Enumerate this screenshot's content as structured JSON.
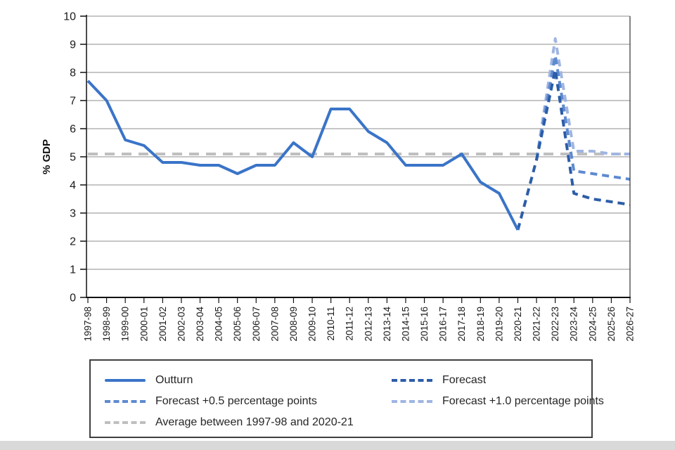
{
  "colors": {
    "outturn": "#3a74c8",
    "forecast": "#2c5da8",
    "forecast_plus_05": "#5e8ad0",
    "forecast_plus_10": "#9fb5e2",
    "average": "#bfbfbf",
    "grid": "#8c8c8c",
    "axis": "#111111",
    "bottom_band": "#d9d9d9"
  },
  "chart_data": {
    "type": "line",
    "title": "",
    "xlabel": "",
    "ylabel": "% GDP",
    "ylim": [
      0,
      10
    ],
    "y_ticks": [
      0,
      1,
      2,
      3,
      4,
      5,
      6,
      7,
      8,
      9,
      10
    ],
    "grid": true,
    "legend_position": "bottom-box",
    "categories": [
      "1997-98",
      "1998-99",
      "1999-00",
      "2000-01",
      "2001-02",
      "2002-03",
      "2003-04",
      "2004-05",
      "2005-06",
      "2006-07",
      "2007-08",
      "2008-09",
      "2009-10",
      "2010-11",
      "2011-12",
      "2012-13",
      "2013-14",
      "2014-15",
      "2015-16",
      "2016-17",
      "2017-18",
      "2018-19",
      "2019-20",
      "2020-21",
      "2021-22",
      "2022-23",
      "2023-24",
      "2024-25",
      "2025-26",
      "2026-27"
    ],
    "series": [
      {
        "name": "Outturn",
        "style": "solid",
        "color": "#3a74c8",
        "values": [
          7.7,
          7.0,
          5.6,
          5.4,
          4.8,
          4.8,
          4.7,
          4.7,
          4.4,
          4.7,
          4.7,
          5.5,
          5.0,
          6.7,
          6.7,
          5.9,
          5.5,
          4.7,
          4.7,
          4.7,
          5.1,
          4.1,
          3.7,
          2.4,
          null,
          null,
          null,
          null,
          null,
          null
        ]
      },
      {
        "name": "Forecast",
        "style": "dashed",
        "color": "#2c5da8",
        "values": [
          null,
          null,
          null,
          null,
          null,
          null,
          null,
          null,
          null,
          null,
          null,
          null,
          null,
          null,
          null,
          null,
          null,
          null,
          null,
          null,
          null,
          null,
          null,
          2.4,
          4.9,
          8.1,
          3.7,
          3.5,
          3.4,
          3.3
        ]
      },
      {
        "name": "Forecast +0.5 percentage points",
        "style": "dashed",
        "color": "#5e8ad0",
        "values": [
          null,
          null,
          null,
          null,
          null,
          null,
          null,
          null,
          null,
          null,
          null,
          null,
          null,
          null,
          null,
          null,
          null,
          null,
          null,
          null,
          null,
          null,
          null,
          null,
          4.9,
          8.6,
          4.5,
          4.4,
          4.3,
          4.2
        ]
      },
      {
        "name": "Forecast +1.0 percentage points",
        "style": "dashed",
        "color": "#9fb5e2",
        "values": [
          null,
          null,
          null,
          null,
          null,
          null,
          null,
          null,
          null,
          null,
          null,
          null,
          null,
          null,
          null,
          null,
          null,
          null,
          null,
          null,
          null,
          null,
          null,
          null,
          4.9,
          9.2,
          5.2,
          5.2,
          5.1,
          5.1
        ]
      },
      {
        "name": "Average between 1997-98 and 2020-21",
        "style": "dashed-long",
        "color": "#bfbfbf",
        "constant_value": 5.1
      }
    ]
  }
}
